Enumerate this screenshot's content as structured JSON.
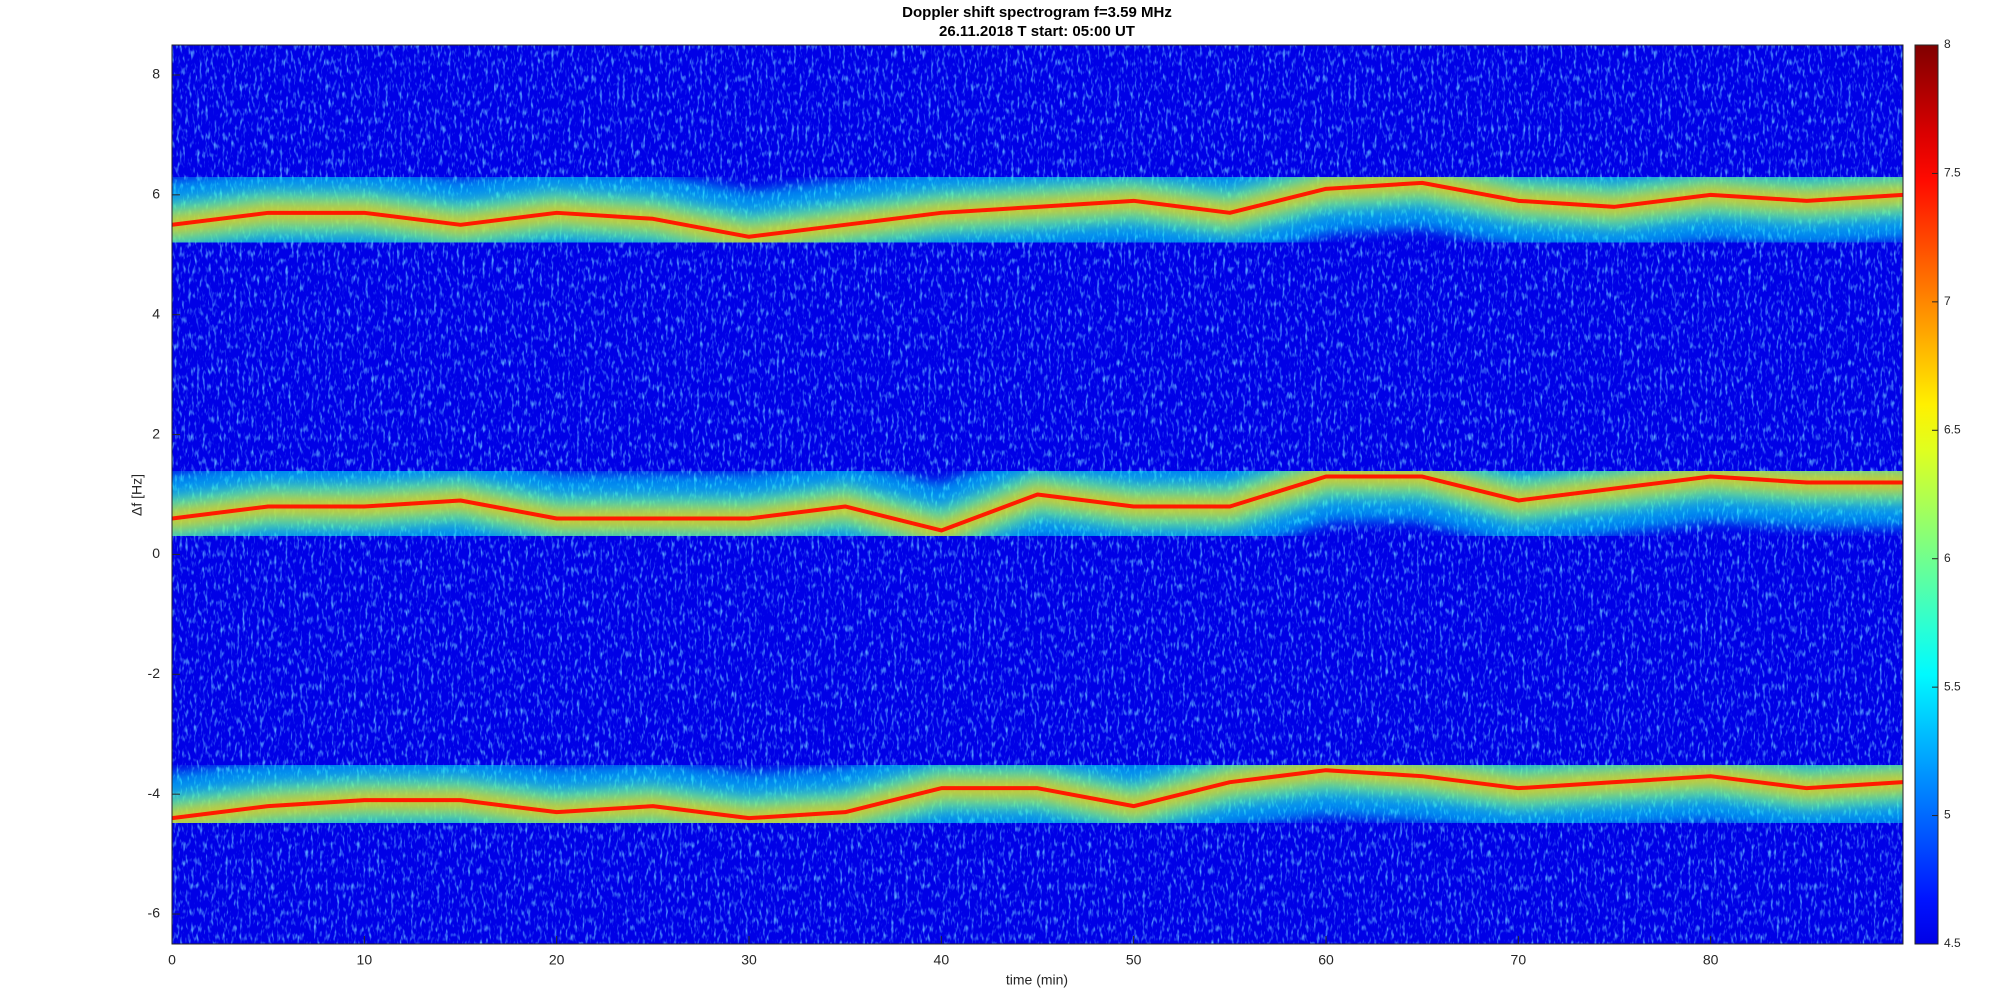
{
  "chart_data": {
    "type": "spectrogram",
    "title": "Doppler shift spectrogram f=3.59 MHz",
    "subtitle": "26.11.2018   T start: 05:00 UT",
    "x_label": "time (min)",
    "y_label": "Δf [Hz]",
    "x": [
      0,
      5,
      10,
      15,
      20,
      25,
      30,
      35,
      40,
      45,
      50,
      55,
      60,
      65,
      70,
      75,
      80,
      85,
      90
    ],
    "series": [
      {
        "color": "#ff1a00",
        "values": [
          5.5,
          5.7,
          5.7,
          5.5,
          5.7,
          5.6,
          5.3,
          5.5,
          5.7,
          5.8,
          5.9,
          5.7,
          6.1,
          6.2,
          5.9,
          5.8,
          6.0,
          5.9,
          6.0
        ]
      },
      {
        "color": "#ff1a00",
        "values": [
          0.6,
          0.8,
          0.8,
          0.9,
          0.6,
          0.6,
          0.6,
          0.8,
          0.4,
          1.0,
          0.8,
          0.8,
          1.3,
          1.3,
          0.9,
          1.1,
          1.3,
          1.2,
          1.2
        ]
      },
      {
        "color": "#ff1a00",
        "values": [
          -4.4,
          -4.2,
          -4.1,
          -4.1,
          -4.3,
          -4.2,
          -4.4,
          -4.3,
          -3.9,
          -3.9,
          -4.2,
          -3.8,
          -3.6,
          -3.7,
          -3.9,
          -3.8,
          -3.7,
          -3.9,
          -3.8
        ]
      }
    ],
    "xlim": [
      0,
      90
    ],
    "xticks": [
      0,
      10,
      20,
      30,
      40,
      50,
      60,
      70,
      80
    ],
    "ylim": [
      -6.5,
      8.5
    ],
    "yticks": [
      -6,
      -4,
      -2,
      0,
      2,
      4,
      6,
      8
    ],
    "colormap": "jet",
    "clim": [
      4.5,
      8
    ],
    "cticks": [
      4.5,
      5,
      5.5,
      6,
      6.5,
      7,
      7.5,
      8
    ]
  }
}
